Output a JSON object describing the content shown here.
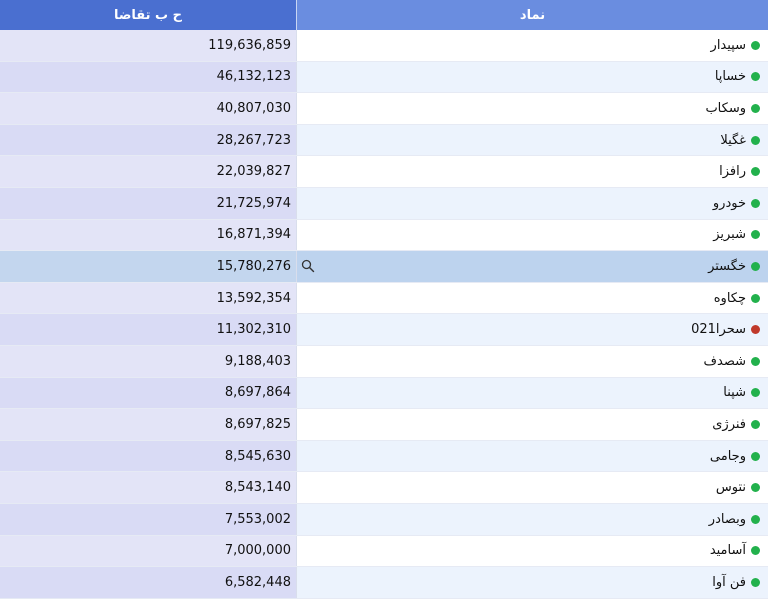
{
  "header": {
    "volume_label": "ح ب تقاضا",
    "symbol_label": "نماد"
  },
  "colors": {
    "up": "#22b14c",
    "down": "#c0392b"
  },
  "rows": [
    {
      "symbol": "سپیدار",
      "volume": "119,636,859",
      "status": "up"
    },
    {
      "symbol": "خساپا",
      "volume": "46,132,123",
      "status": "up"
    },
    {
      "symbol": "وسکاب",
      "volume": "40,807,030",
      "status": "up"
    },
    {
      "symbol": "غگیلا",
      "volume": "28,267,723",
      "status": "up"
    },
    {
      "symbol": "رافزا",
      "volume": "22,039,827",
      "status": "up"
    },
    {
      "symbol": "خودرو",
      "volume": "21,725,974",
      "status": "up"
    },
    {
      "symbol": "شبریز",
      "volume": "16,871,394",
      "status": "up"
    },
    {
      "symbol": "خگستر",
      "volume": "15,780,276",
      "status": "up",
      "highlighted": true
    },
    {
      "symbol": "چکاوه",
      "volume": "13,592,354",
      "status": "up"
    },
    {
      "symbol": "سحرا021",
      "volume": "11,302,310",
      "status": "down"
    },
    {
      "symbol": "شصدف",
      "volume": "9,188,403",
      "status": "up"
    },
    {
      "symbol": "شپنا",
      "volume": "8,697,864",
      "status": "up"
    },
    {
      "symbol": "فنرژی",
      "volume": "8,697,825",
      "status": "up"
    },
    {
      "symbol": "وجامی",
      "volume": "8,545,630",
      "status": "up"
    },
    {
      "symbol": "نتوس",
      "volume": "8,543,140",
      "status": "up"
    },
    {
      "symbol": "وبصادر",
      "volume": "7,553,002",
      "status": "up"
    },
    {
      "symbol": "آسامید",
      "volume": "7,000,000",
      "status": "up"
    },
    {
      "symbol": "فن آوا",
      "volume": "6,582,448",
      "status": "up"
    }
  ]
}
